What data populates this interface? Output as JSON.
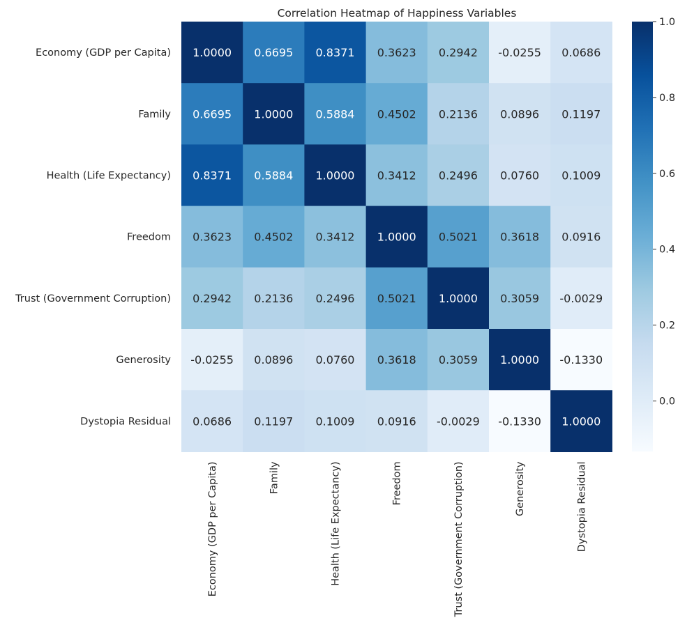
{
  "chart_data": {
    "type": "heatmap",
    "title": "Correlation Heatmap of Happiness Variables",
    "xlabel": "",
    "ylabel": "",
    "colormap": "Blues",
    "colormap_stops": [
      "#f7fbff",
      "#deebf7",
      "#c6dbef",
      "#9ecae1",
      "#6baed6",
      "#4292c6",
      "#2171b5",
      "#08519c",
      "#08306b"
    ],
    "color_range": [
      -0.133,
      1.0
    ],
    "colorbar_ticks": [
      "0.0",
      "0.2",
      "0.4",
      "0.6",
      "0.8",
      "1.0"
    ],
    "colorbar_tick_values": [
      0.0,
      0.2,
      0.4,
      0.6,
      0.8,
      1.0
    ],
    "row_labels": [
      "Economy (GDP per Capita)",
      "Family",
      "Health (Life Expectancy)",
      "Freedom",
      "Trust (Government Corruption)",
      "Generosity",
      "Dystopia Residual"
    ],
    "column_labels": [
      "Economy (GDP per Capita)",
      "Family",
      "Health (Life Expectancy)",
      "Freedom",
      "Trust (Government Corruption)",
      "Generosity",
      "Dystopia Residual"
    ],
    "values": [
      [
        1.0,
        0.6695,
        0.8371,
        0.3623,
        0.2942,
        -0.0255,
        0.0686
      ],
      [
        0.6695,
        1.0,
        0.5884,
        0.4502,
        0.2136,
        0.0896,
        0.1197
      ],
      [
        0.8371,
        0.5884,
        1.0,
        0.3412,
        0.2496,
        0.076,
        0.1009
      ],
      [
        0.3623,
        0.4502,
        0.3412,
        1.0,
        0.5021,
        0.3618,
        0.0916
      ],
      [
        0.2942,
        0.2136,
        0.2496,
        0.5021,
        1.0,
        0.3059,
        -0.0029
      ],
      [
        -0.0255,
        0.0896,
        0.076,
        0.3618,
        0.3059,
        1.0,
        -0.133
      ],
      [
        0.0686,
        0.1197,
        0.1009,
        0.0916,
        -0.0029,
        -0.133,
        1.0
      ]
    ],
    "value_labels": [
      [
        "1.0000",
        "0.6695",
        "0.8371",
        "0.3623",
        "0.2942",
        "-0.0255",
        "0.0686"
      ],
      [
        "0.6695",
        "1.0000",
        "0.5884",
        "0.4502",
        "0.2136",
        "0.0896",
        "0.1197"
      ],
      [
        "0.8371",
        "0.5884",
        "1.0000",
        "0.3412",
        "0.2496",
        "0.0760",
        "0.1009"
      ],
      [
        "0.3623",
        "0.4502",
        "0.3412",
        "1.0000",
        "0.5021",
        "0.3618",
        "0.0916"
      ],
      [
        "0.2942",
        "0.2136",
        "0.2496",
        "0.5021",
        "1.0000",
        "0.3059",
        "-0.0029"
      ],
      [
        "-0.0255",
        "0.0896",
        "0.0760",
        "0.3618",
        "0.3059",
        "1.0000",
        "-0.1330"
      ],
      [
        "0.0686",
        "0.1197",
        "0.1009",
        "0.0916",
        "-0.0029",
        "-0.1330",
        "1.0000"
      ]
    ],
    "grid": false,
    "legend": "colorbar-right"
  }
}
